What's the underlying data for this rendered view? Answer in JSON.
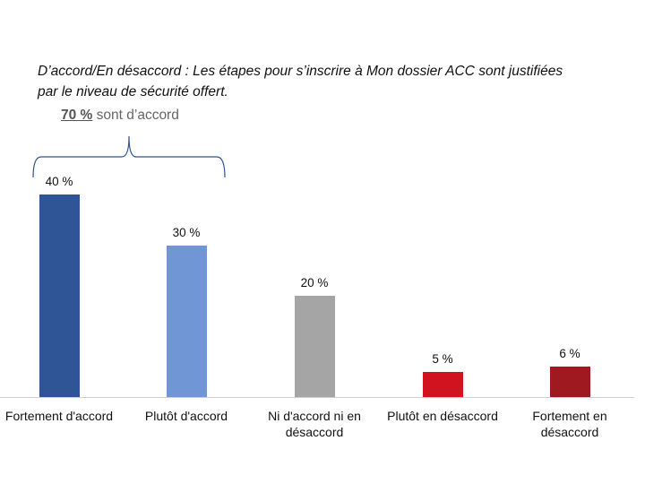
{
  "title": "D’accord/En désaccord : Les étapes pour s’inscrire à Mon dossier ACC sont justifiées par le niveau de sécurité offert.",
  "summary": {
    "pct": "70 %",
    "text": " sont d’accord"
  },
  "chart_data": {
    "type": "bar",
    "title": "D’accord/En désaccord : Les étapes pour s’inscrire à Mon dossier ACC sont justifiées par le niveau de sécurité offert.",
    "categories": [
      "Fortement d'accord",
      "Plutôt d'accord",
      "Ni d'accord ni en désaccord",
      "Plutôt en désaccord",
      "Fortement en désaccord"
    ],
    "values": [
      40,
      30,
      20,
      5,
      6
    ],
    "labels": [
      "40 %",
      "30 %",
      "20 %",
      "5 %",
      "6 %"
    ],
    "colors": [
      "#2F5597",
      "#7096D6",
      "#A5A5A5",
      "#D0131E",
      "#9E1A20"
    ],
    "annotation": "70 % sont d’accord",
    "xlabel": "",
    "ylabel": "",
    "ylim": [
      0,
      45
    ],
    "grid": false,
    "legend": "none"
  }
}
